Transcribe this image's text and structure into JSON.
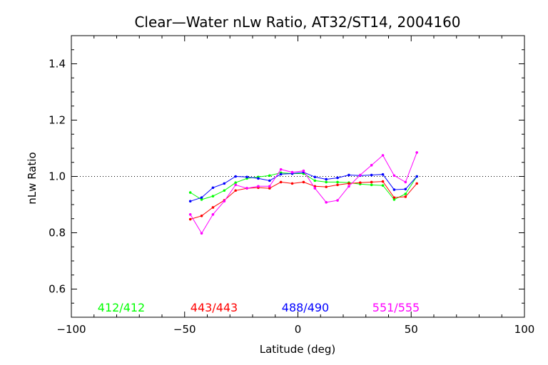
{
  "chart_data": {
    "type": "line",
    "title": "Clear—Water nLw Ratio, AT32/ST14, 2004160",
    "xlabel": "Latitude (deg)",
    "ylabel": "nLw Ratio",
    "xlim": [
      -100,
      100
    ],
    "ylim": [
      0.5,
      1.5
    ],
    "xticks": [
      -100,
      -50,
      0,
      50,
      100
    ],
    "xtick_labels": [
      "−100",
      "−50",
      "0",
      "50",
      "100"
    ],
    "yticks": [
      0.6,
      0.8,
      1.0,
      1.2,
      1.4
    ],
    "ytick_labels": [
      "0.6",
      "0.8",
      "1.0",
      "1.2",
      "1.4"
    ],
    "reference_line": {
      "y": 1.0,
      "style": "dotted"
    },
    "grid": false,
    "legend_position": "bottom",
    "series": [
      {
        "name": "412/412",
        "color": "#00ff00",
        "x": [
          -47.5,
          -42.5,
          -37.5,
          -32.5,
          -27.5,
          -22.5,
          -17.5,
          -12.5,
          -7.5,
          -2.5,
          2.5,
          7.5,
          12.5,
          17.5,
          22.5,
          27.5,
          32.5,
          37.5,
          42.5,
          47.5,
          52.5
        ],
        "y": [
          0.943,
          0.918,
          0.93,
          0.95,
          0.978,
          0.993,
          0.998,
          1.003,
          1.013,
          1.01,
          1.01,
          0.985,
          0.98,
          0.98,
          0.978,
          0.973,
          0.97,
          0.968,
          0.918,
          0.938,
          1.0
        ]
      },
      {
        "name": "443/443",
        "color": "#ff0000",
        "x": [
          -47.5,
          -42.5,
          -37.5,
          -32.5,
          -27.5,
          -22.5,
          -17.5,
          -12.5,
          -7.5,
          -2.5,
          2.5,
          7.5,
          12.5,
          17.5,
          22.5,
          27.5,
          32.5,
          37.5,
          42.5,
          47.5,
          52.5
        ],
        "y": [
          0.848,
          0.86,
          0.89,
          0.915,
          0.95,
          0.958,
          0.96,
          0.958,
          0.98,
          0.975,
          0.98,
          0.965,
          0.963,
          0.97,
          0.975,
          0.978,
          0.98,
          0.982,
          0.925,
          0.928,
          0.975
        ]
      },
      {
        "name": "488/490",
        "color": "#0000ff",
        "x": [
          -47.5,
          -42.5,
          -37.5,
          -32.5,
          -27.5,
          -22.5,
          -17.5,
          -12.5,
          -7.5,
          -2.5,
          2.5,
          7.5,
          12.5,
          17.5,
          22.5,
          27.5,
          32.5,
          37.5,
          42.5,
          47.5,
          52.5
        ],
        "y": [
          0.912,
          0.925,
          0.96,
          0.975,
          1.0,
          0.998,
          0.993,
          0.985,
          1.008,
          1.01,
          1.015,
          0.998,
          0.99,
          0.995,
          1.005,
          1.003,
          1.005,
          1.007,
          0.953,
          0.955,
          1.0
        ]
      },
      {
        "name": "551/555",
        "color": "#ff00ff",
        "x": [
          -47.5,
          -42.5,
          -37.5,
          -32.5,
          -27.5,
          -22.5,
          -17.5,
          -12.5,
          -7.5,
          -2.5,
          2.5,
          7.5,
          12.5,
          17.5,
          22.5,
          27.5,
          32.5,
          37.5,
          42.5,
          47.5,
          52.5
        ],
        "y": [
          0.865,
          0.798,
          0.865,
          0.912,
          0.97,
          0.958,
          0.965,
          0.965,
          1.025,
          1.015,
          1.02,
          0.958,
          0.908,
          0.915,
          0.965,
          1.005,
          1.04,
          1.075,
          1.003,
          0.98,
          1.085
        ]
      }
    ]
  }
}
